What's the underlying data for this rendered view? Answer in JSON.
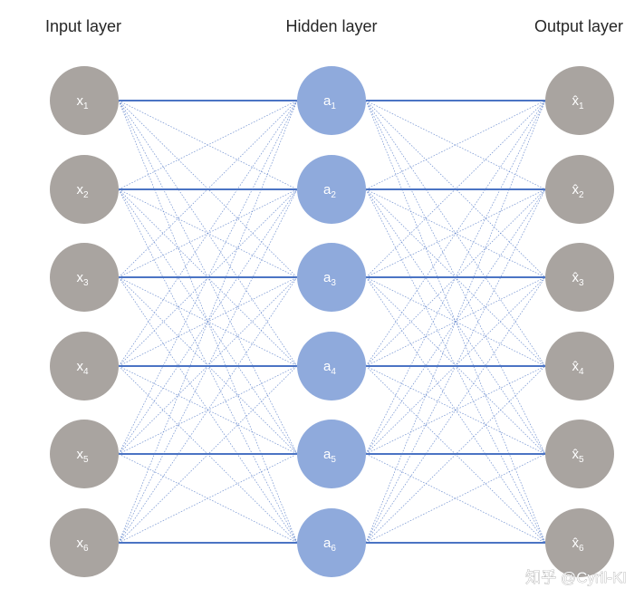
{
  "titles": {
    "input": "Input layer",
    "hidden": "Hidden layer",
    "output": "Output layer"
  },
  "colors": {
    "input_node": "#a9a4a0",
    "hidden_node": "#8faadc",
    "output_node": "#a9a4a0",
    "connection": "#4b74c4"
  },
  "layers": {
    "input": {
      "symbol": "x",
      "hat": false,
      "nodes": [
        {
          "base": "x",
          "sub": "1"
        },
        {
          "base": "x",
          "sub": "2"
        },
        {
          "base": "x",
          "sub": "3"
        },
        {
          "base": "x",
          "sub": "4"
        },
        {
          "base": "x",
          "sub": "5"
        },
        {
          "base": "x",
          "sub": "6"
        }
      ]
    },
    "hidden": {
      "symbol": "a",
      "hat": false,
      "nodes": [
        {
          "base": "a",
          "sub": "1"
        },
        {
          "base": "a",
          "sub": "2"
        },
        {
          "base": "a",
          "sub": "3"
        },
        {
          "base": "a",
          "sub": "4"
        },
        {
          "base": "a",
          "sub": "5"
        },
        {
          "base": "a",
          "sub": "6"
        }
      ]
    },
    "output": {
      "symbol": "x̂",
      "hat": true,
      "nodes": [
        {
          "base": "x̂",
          "sub": "1"
        },
        {
          "base": "x̂",
          "sub": "2"
        },
        {
          "base": "x̂",
          "sub": "3"
        },
        {
          "base": "x̂",
          "sub": "4"
        },
        {
          "base": "x̂",
          "sub": "5"
        },
        {
          "base": "x̂",
          "sub": "6"
        }
      ]
    }
  },
  "watermark": "知乎 @Cyril-KI"
}
